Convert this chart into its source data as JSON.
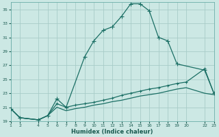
{
  "title": "",
  "xlabel": "Humidex (Indice chaleur)",
  "bg_color": "#cce8e4",
  "grid_color": "#a8ccc8",
  "line_color": "#1a6e64",
  "xlim": [
    1,
    23
  ],
  "ylim": [
    19,
    36
  ],
  "xticks": [
    1,
    2,
    4,
    5,
    6,
    7,
    8,
    9,
    10,
    11,
    12,
    13,
    14,
    15,
    16,
    17,
    18,
    19,
    20,
    22,
    23
  ],
  "yticks": [
    19,
    21,
    23,
    25,
    27,
    29,
    31,
    33,
    35
  ],
  "series1": {
    "x": [
      1,
      2,
      4,
      5,
      6,
      7,
      9,
      10,
      11,
      12,
      13,
      14,
      15,
      16,
      17,
      18,
      19,
      22,
      23
    ],
    "y": [
      20.8,
      19.5,
      19.2,
      19.8,
      22.2,
      21.0,
      28.2,
      30.5,
      32.0,
      32.5,
      34.0,
      35.8,
      35.8,
      34.8,
      31.0,
      30.5,
      27.2,
      26.3,
      23.0
    ]
  },
  "series2": {
    "x": [
      1,
      2,
      4,
      5,
      6,
      7,
      8,
      9,
      10,
      11,
      12,
      13,
      14,
      15,
      16,
      17,
      18,
      19,
      20,
      22,
      23
    ],
    "y": [
      20.8,
      19.5,
      19.2,
      19.8,
      21.5,
      21.0,
      21.3,
      21.5,
      21.7,
      22.0,
      22.3,
      22.7,
      23.0,
      23.3,
      23.6,
      23.8,
      24.1,
      24.4,
      24.6,
      26.5,
      23.0
    ]
  },
  "series3": {
    "x": [
      1,
      2,
      4,
      5,
      6,
      7,
      8,
      9,
      10,
      11,
      12,
      13,
      14,
      15,
      16,
      17,
      18,
      19,
      20,
      22,
      23
    ],
    "y": [
      20.8,
      19.5,
      19.2,
      19.8,
      21.0,
      20.5,
      20.8,
      21.0,
      21.3,
      21.5,
      21.8,
      22.0,
      22.3,
      22.6,
      22.8,
      23.0,
      23.3,
      23.6,
      23.8,
      23.0,
      22.8
    ]
  }
}
